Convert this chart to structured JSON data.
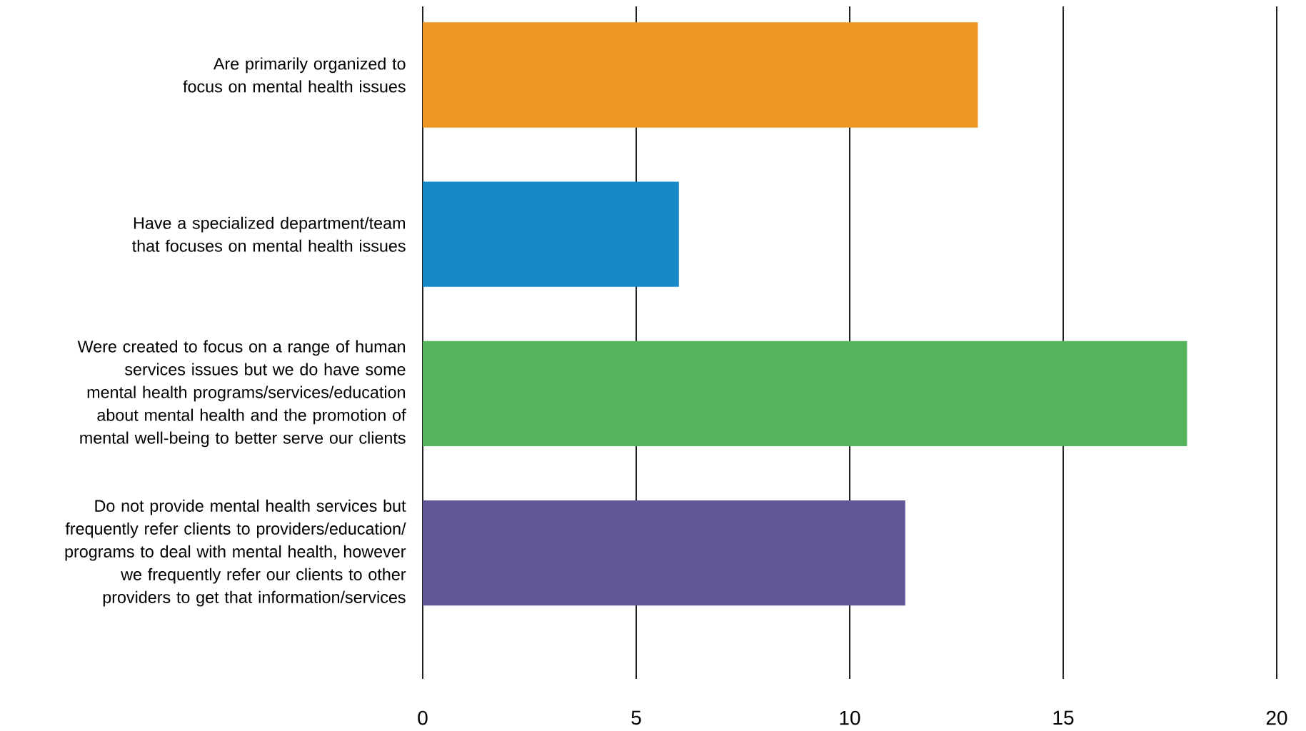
{
  "chart_data": {
    "type": "bar",
    "orientation": "horizontal",
    "categories": [
      "Are primarily organized to focus on mental health issues",
      "Have a specialized department/team that focuses on mental health issues",
      "Were created to focus on a range of human services issues but we do have some mental health programs/services/education about mental health and the promotion of mental well-being to better serve our clients",
      "Do not provide mental health services but frequently refer clients to providers/education/ programs to deal with mental health, however we frequently refer our clients to other providers to get that information/services"
    ],
    "values": [
      13,
      6,
      17.9,
      11.3
    ],
    "colors": [
      "#ee9624",
      "#1689c9",
      "#55b55f",
      "#625699"
    ],
    "xlim": [
      0,
      20
    ],
    "xticks": [
      0,
      5,
      10,
      15,
      20
    ],
    "grid": "x"
  }
}
